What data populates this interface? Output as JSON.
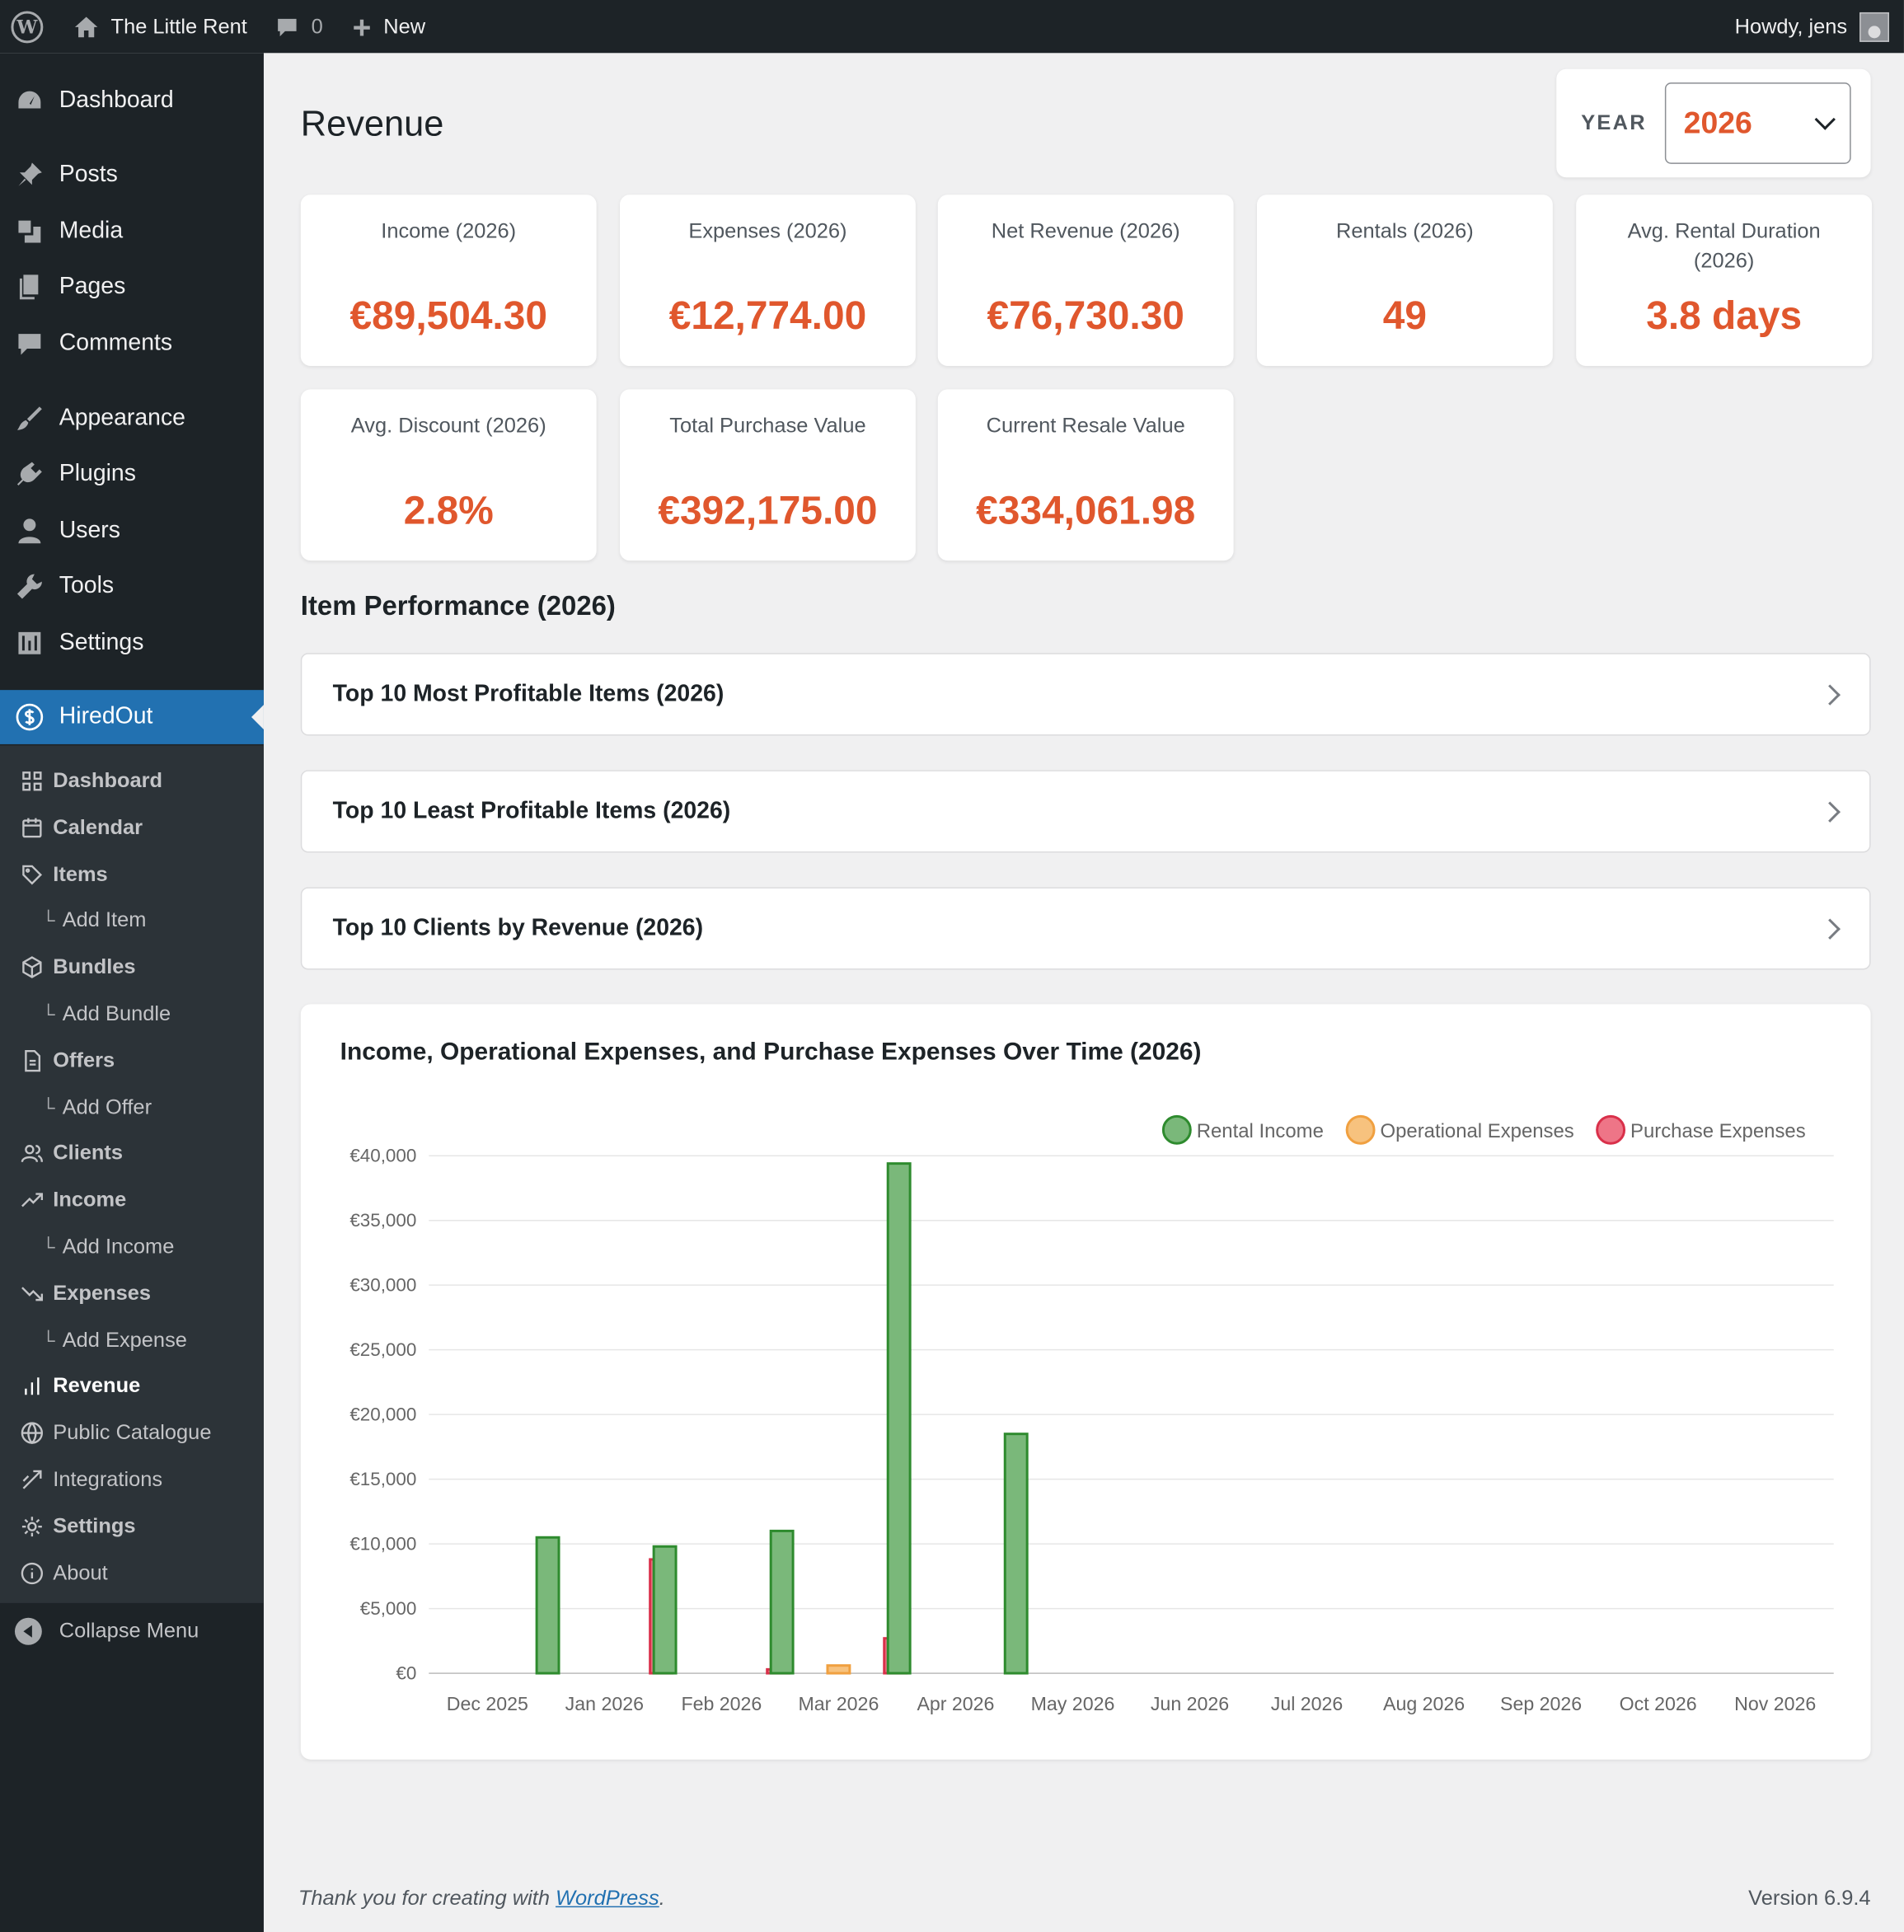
{
  "adminbar": {
    "site_name": "The Little Rent",
    "comments_count": "0",
    "new_label": "New",
    "howdy": "Howdy, jens"
  },
  "sidebar": {
    "items": [
      {
        "label": "Dashboard",
        "icon": "dashboard-icon"
      },
      {
        "label": "Posts",
        "icon": "pin-icon"
      },
      {
        "label": "Media",
        "icon": "media-icon"
      },
      {
        "label": "Pages",
        "icon": "pages-icon"
      },
      {
        "label": "Comments",
        "icon": "comment-icon"
      },
      {
        "label": "Appearance",
        "icon": "brush-icon"
      },
      {
        "label": "Plugins",
        "icon": "plugin-icon"
      },
      {
        "label": "Users",
        "icon": "user-icon"
      },
      {
        "label": "Tools",
        "icon": "wrench-icon"
      },
      {
        "label": "Settings",
        "icon": "settings-icon"
      },
      {
        "label": "HiredOut",
        "icon": "dollar-circle-icon"
      }
    ],
    "submenu": [
      {
        "label": "Dashboard",
        "icon": "grid-icon"
      },
      {
        "label": "Calendar",
        "icon": "calendar-icon"
      },
      {
        "label": "Items",
        "icon": "tag-icon"
      },
      {
        "label": "Add Item"
      },
      {
        "label": "Bundles",
        "icon": "box-icon"
      },
      {
        "label": "Add Bundle"
      },
      {
        "label": "Offers",
        "icon": "document-icon"
      },
      {
        "label": "Add Offer"
      },
      {
        "label": "Clients",
        "icon": "users-icon"
      },
      {
        "label": "Income",
        "icon": "trend-up-icon"
      },
      {
        "label": "Add Income"
      },
      {
        "label": "Expenses",
        "icon": "trend-down-icon"
      },
      {
        "label": "Add Expense"
      },
      {
        "label": "Revenue",
        "icon": "bar-chart-icon"
      },
      {
        "label": "Public Catalogue",
        "icon": "globe-icon"
      },
      {
        "label": "Integrations",
        "icon": "link-icon"
      },
      {
        "label": "Settings",
        "icon": "gear-icon"
      },
      {
        "label": "About",
        "icon": "info-icon"
      }
    ],
    "collapse_label": "Collapse Menu"
  },
  "page": {
    "title": "Revenue",
    "year_label": "YEAR",
    "year_value": "2026"
  },
  "stats": [
    {
      "label": "Income (2026)",
      "value": "€89,504.30"
    },
    {
      "label": "Expenses (2026)",
      "value": "€12,774.00"
    },
    {
      "label": "Net Revenue (2026)",
      "value": "€76,730.30"
    },
    {
      "label": "Rentals (2026)",
      "value": "49"
    },
    {
      "label": "Avg. Rental Duration (2026)",
      "value": "3.8 days"
    },
    {
      "label": "Avg. Discount (2026)",
      "value": "2.8%"
    },
    {
      "label": "Total Purchase Value",
      "value": "€392,175.00"
    },
    {
      "label": "Current Resale Value",
      "value": "€334,061.98"
    }
  ],
  "performance": {
    "title": "Item Performance (2026)",
    "panels": [
      "Top 10 Most Profitable Items (2026)",
      "Top 10 Least Profitable Items (2026)",
      "Top 10 Clients by Revenue (2026)"
    ]
  },
  "chart_data": {
    "type": "bar",
    "title": "Income, Operational Expenses, and Purchase Expenses Over Time (2026)",
    "categories": [
      "Dec 2025",
      "Jan 2026",
      "Feb 2026",
      "Mar 2026",
      "Apr 2026",
      "May 2026",
      "Jun 2026",
      "Jul 2026",
      "Aug 2026",
      "Sep 2026",
      "Oct 2026",
      "Nov 2026"
    ],
    "series": [
      {
        "name": "Rental Income",
        "color": "#2e8b2e",
        "fill": "#7ab87a",
        "values": [
          0,
          10500,
          9800,
          11000,
          39400,
          18500,
          0,
          0,
          0,
          0,
          0,
          0
        ]
      },
      {
        "name": "Operational Expenses",
        "color": "#f0a040",
        "fill": "#f7c27e",
        "values": [
          0,
          0,
          0,
          600,
          0,
          0,
          0,
          0,
          0,
          0,
          0,
          0
        ]
      },
      {
        "name": "Purchase Expenses",
        "color": "#d9304a",
        "fill": "#ee7587",
        "values": [
          0,
          8800,
          300,
          2700,
          0,
          0,
          0,
          0,
          0,
          0,
          0,
          0
        ]
      }
    ],
    "ylim": [
      0,
      40000
    ],
    "yticks": [
      "€0",
      "€5,000",
      "€10,000",
      "€15,000",
      "€20,000",
      "€25,000",
      "€30,000",
      "€35,000",
      "€40,000"
    ],
    "legend": "top-right",
    "grid": true
  },
  "footer": {
    "thanks_prefix": "Thank you for creating with ",
    "thanks_link": "WordPress",
    "thanks_suffix": ".",
    "version": "Version 6.9.4"
  }
}
